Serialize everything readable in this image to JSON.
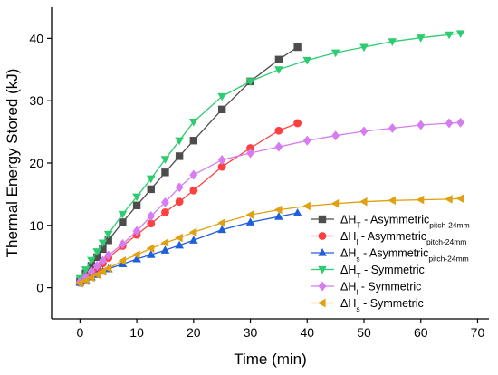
{
  "chart_data": {
    "type": "line",
    "xlabel": "Time (min)",
    "ylabel": "Thermal Energy Stored (kJ)",
    "xlim": [
      -5,
      72
    ],
    "ylim": [
      -5,
      45
    ],
    "xticks": [
      0,
      10,
      20,
      30,
      40,
      50,
      60,
      70
    ],
    "yticks": [
      0,
      10,
      20,
      30,
      40
    ],
    "xtick_labels": [
      "0",
      "10",
      "20",
      "30",
      "40",
      "50",
      "60",
      "70"
    ],
    "ytick_labels": [
      "0",
      "10",
      "20",
      "30",
      "40"
    ],
    "legend_position": "bottom-right",
    "series": [
      {
        "name": "ΔH_T - Asymmetric_pitch-24mm",
        "legend": {
          "delta": "ΔH",
          "sub": "T",
          "text": " - Asymmetric",
          "sub2": "pitch-24mm"
        },
        "color": "#4d4d4d",
        "marker": "square",
        "x": [
          0,
          1,
          2,
          3,
          4,
          5,
          7.5,
          10,
          12.5,
          15,
          17.5,
          20,
          25,
          30,
          35,
          38.3
        ],
        "y": [
          1.0,
          2.3,
          3.5,
          4.9,
          6.2,
          7.6,
          10.5,
          13.2,
          15.8,
          18.5,
          21.1,
          23.6,
          28.6,
          33.1,
          36.6,
          38.6
        ]
      },
      {
        "name": "ΔH_l - Asymmetric_pitch-24mm",
        "legend": {
          "delta": "ΔH",
          "sub": "l",
          "text": " - Asymmetric",
          "sub2": "pitch-24mm"
        },
        "color": "#ff4040",
        "marker": "circle",
        "x": [
          0,
          1,
          2,
          3,
          4,
          5,
          7.5,
          10,
          12.5,
          15,
          17.5,
          20,
          25,
          30,
          35,
          38.3
        ],
        "y": [
          0.8,
          1.4,
          2.2,
          3.0,
          3.9,
          4.8,
          6.7,
          8.5,
          10.3,
          12.1,
          13.8,
          15.6,
          19.4,
          22.4,
          25.2,
          26.4
        ]
      },
      {
        "name": "ΔH_s - Asymmetric_pitch-24mm",
        "legend": {
          "delta": "ΔH",
          "sub": "s",
          "text": " - Asymmetric",
          "sub2": "pitch-24mm"
        },
        "color": "#1f5fdc",
        "marker": "triangle-up",
        "x": [
          0,
          1,
          2,
          3,
          4,
          5,
          7.5,
          10,
          12.5,
          15,
          17.5,
          20,
          25,
          30,
          35,
          38.3
        ],
        "y": [
          0.8,
          1.2,
          1.7,
          2.1,
          2.6,
          3.0,
          3.8,
          4.6,
          5.3,
          6.0,
          6.8,
          7.6,
          9.3,
          10.5,
          11.4,
          12.0
        ]
      },
      {
        "name": "ΔH_T - Symmetric",
        "legend": {
          "delta": "ΔH",
          "sub": "T",
          "text": " - Symmetric",
          "sub2": ""
        },
        "color": "#2ecc71",
        "marker": "triangle-down",
        "x": [
          0,
          1,
          2,
          3,
          4,
          5,
          7.5,
          10,
          12.5,
          15,
          17.5,
          20,
          25,
          30,
          35,
          40,
          45,
          50,
          55,
          60,
          65,
          67
        ],
        "y": [
          1.5,
          2.9,
          4.4,
          5.8,
          7.2,
          8.6,
          11.8,
          14.6,
          17.5,
          20.6,
          23.6,
          26.6,
          30.7,
          33.1,
          35.0,
          36.5,
          37.7,
          38.6,
          39.5,
          40.1,
          40.6,
          40.8
        ]
      },
      {
        "name": "ΔH_l - Symmetric",
        "legend": {
          "delta": "ΔH",
          "sub": "l",
          "text": " - Symmetric",
          "sub2": ""
        },
        "color": "#d67cf2",
        "marker": "diamond",
        "x": [
          0,
          1,
          2,
          3,
          4,
          5,
          7.5,
          10,
          12.5,
          15,
          17.5,
          20,
          25,
          30,
          35,
          40,
          45,
          50,
          55,
          60,
          65,
          67
        ],
        "y": [
          0.9,
          1.7,
          2.6,
          3.5,
          4.3,
          5.2,
          7.0,
          9.1,
          11.5,
          13.7,
          16.1,
          18.1,
          20.5,
          21.6,
          22.6,
          23.6,
          24.4,
          25.1,
          25.6,
          26.1,
          26.4,
          26.5
        ]
      },
      {
        "name": "ΔH_s - Symmetric",
        "legend": {
          "delta": "ΔH",
          "sub": "s",
          "text": " - Symmetric",
          "sub2": ""
        },
        "color": "#e0a010",
        "marker": "triangle-left",
        "x": [
          0,
          1,
          2,
          3,
          4,
          5,
          7.5,
          10,
          12.5,
          15,
          17.5,
          20,
          25,
          30,
          35,
          40,
          45,
          50,
          55,
          60,
          65,
          67
        ],
        "y": [
          0.7,
          1.1,
          1.6,
          2.1,
          2.6,
          3.1,
          4.3,
          5.3,
          6.3,
          7.2,
          8.0,
          8.9,
          10.4,
          11.7,
          12.5,
          13.1,
          13.5,
          13.8,
          14.0,
          14.1,
          14.2,
          14.3
        ]
      }
    ]
  }
}
